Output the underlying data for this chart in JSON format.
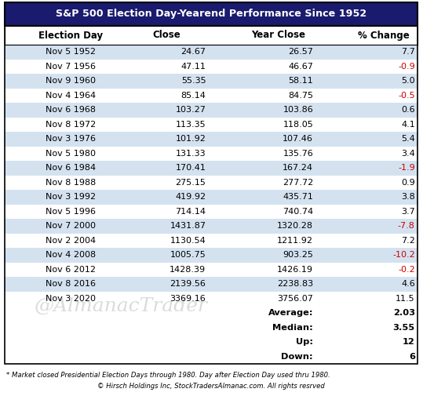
{
  "title": "S&P 500 Election Day-Yearend Performance Since 1952",
  "headers": [
    "Election Day",
    "Close",
    "Year Close",
    "% Change"
  ],
  "rows": [
    [
      "Nov 5 1952",
      "24.67",
      "26.57",
      "7.7",
      false
    ],
    [
      "Nov 7 1956",
      "47.11",
      "46.67",
      "-0.9",
      true
    ],
    [
      "Nov 9 1960",
      "55.35",
      "58.11",
      "5.0",
      false
    ],
    [
      "Nov 4 1964",
      "85.14",
      "84.75",
      "-0.5",
      true
    ],
    [
      "Nov 6 1968",
      "103.27",
      "103.86",
      "0.6",
      false
    ],
    [
      "Nov 8 1972",
      "113.35",
      "118.05",
      "4.1",
      false
    ],
    [
      "Nov 3 1976",
      "101.92",
      "107.46",
      "5.4",
      false
    ],
    [
      "Nov 5 1980",
      "131.33",
      "135.76",
      "3.4",
      false
    ],
    [
      "Nov 6 1984",
      "170.41",
      "167.24",
      "-1.9",
      true
    ],
    [
      "Nov 8 1988",
      "275.15",
      "277.72",
      "0.9",
      false
    ],
    [
      "Nov 3 1992",
      "419.92",
      "435.71",
      "3.8",
      false
    ],
    [
      "Nov 5 1996",
      "714.14",
      "740.74",
      "3.7",
      false
    ],
    [
      "Nov 7 2000",
      "1431.87",
      "1320.28",
      "-7.8",
      true
    ],
    [
      "Nov 2 2004",
      "1130.54",
      "1211.92",
      "7.2",
      false
    ],
    [
      "Nov 4 2008",
      "1005.75",
      "903.25",
      "-10.2",
      true
    ],
    [
      "Nov 6 2012",
      "1428.39",
      "1426.19",
      "-0.2",
      true
    ],
    [
      "Nov 8 2016",
      "2139.56",
      "2238.83",
      "4.6",
      false
    ],
    [
      "Nov 3 2020",
      "3369.16",
      "3756.07",
      "11.5",
      false
    ]
  ],
  "summary": [
    [
      "Average:",
      "2.03"
    ],
    [
      "Median:",
      "3.55"
    ],
    [
      "Up:",
      "12"
    ],
    [
      "Down:",
      "6"
    ]
  ],
  "footnote1": "* Market closed Presidential Election Days through 1980. Day after Election Day used thru 1980.",
  "footnote2": "© Hirsch Holdings Inc, StockTradersAlmanac.com. All rights resrved",
  "watermark": "@AlmanacTrader",
  "title_bg": "#1a1a6e",
  "title_color": "#ffffff",
  "negative_color": "#cc0000",
  "positive_color": "#000000",
  "row_color_odd": "#d4e2f0",
  "row_color_even": "#ffffff",
  "border_color": "#000000"
}
